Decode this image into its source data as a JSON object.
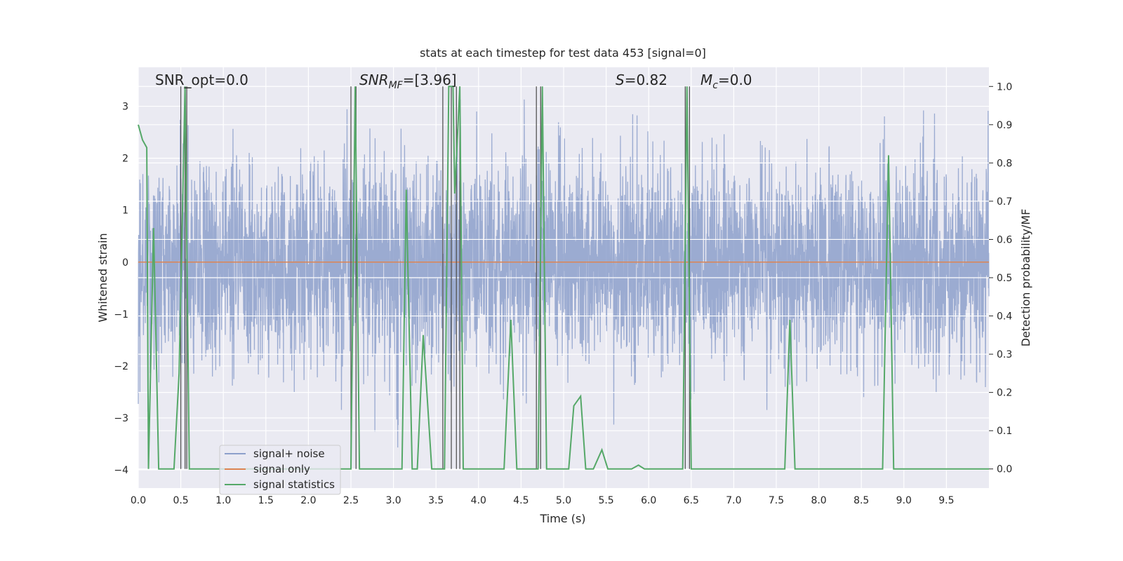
{
  "chart_data": {
    "type": "line",
    "title": "stats at each timestep for test data 453 [signal=0]",
    "xlabel": "Time (s)",
    "ylabel_left": "Whitened strain",
    "ylabel_right": "Detection probability/MF",
    "xlim": [
      0.0,
      10.0
    ],
    "ylim_left": [
      -4.35,
      3.75
    ],
    "ylim_right": [
      -0.05,
      1.05
    ],
    "xticks": [
      "0.0",
      "0.5",
      "1.0",
      "1.5",
      "2.0",
      "2.5",
      "3.0",
      "3.5",
      "4.0",
      "4.5",
      "5.0",
      "5.5",
      "6.0",
      "6.5",
      "7.0",
      "7.5",
      "8.0",
      "8.5",
      "9.0",
      "9.5"
    ],
    "yticks_left": [
      "3",
      "2",
      "1",
      "0",
      "−1",
      "−2",
      "−3",
      "−4"
    ],
    "yticks_right": [
      "1.0",
      "0.9",
      "0.8",
      "0.7",
      "0.6",
      "0.5",
      "0.4",
      "0.3",
      "0.2",
      "0.1",
      "0.0"
    ],
    "grid": true,
    "legend_position": "lower-left",
    "annotations": {
      "snr_opt": "SNR_opt=0.0",
      "snr_mf_sym": "SNR",
      "snr_mf_sub": "MF",
      "snr_mf_val": "=[3.96]",
      "s_sym": "S",
      "s_val": "=0.82",
      "mc_sym": "M",
      "mc_sub": "c",
      "mc_val": "=0.0"
    },
    "series": [
      {
        "name": "signal+ noise",
        "color": "#8da0cb",
        "axis": "left",
        "description_range": [
          -2.1,
          2.3
        ]
      },
      {
        "name": "signal only",
        "color": "#dd8452",
        "axis": "left",
        "x": [
          0.0,
          10.0
        ],
        "y": [
          0.0,
          0.0
        ]
      },
      {
        "name": "signal statistics",
        "color": "#55a868",
        "axis": "right",
        "x": [
          0.0,
          0.05,
          0.1,
          0.12,
          0.18,
          0.24,
          0.3,
          0.36,
          0.42,
          0.48,
          0.55,
          0.6,
          0.66,
          0.72,
          0.78,
          0.84,
          0.9,
          0.96,
          1.02,
          1.5,
          2.0,
          2.4,
          2.5,
          2.55,
          2.6,
          2.65,
          2.7,
          2.75,
          2.8,
          2.9,
          3.0,
          3.1,
          3.15,
          3.22,
          3.28,
          3.35,
          3.45,
          3.5,
          3.55,
          3.6,
          3.65,
          3.7,
          3.72,
          3.78,
          3.82,
          3.88,
          3.95,
          4.0,
          4.3,
          4.38,
          4.45,
          4.5,
          4.6,
          4.7,
          4.75,
          4.8,
          4.9,
          4.98,
          5.06,
          5.12,
          5.2,
          5.26,
          5.35,
          5.45,
          5.52,
          5.8,
          5.88,
          5.95,
          6.0,
          6.4,
          6.45,
          6.5,
          6.56,
          6.7,
          7.0,
          7.5,
          7.6,
          7.66,
          7.72,
          8.0,
          8.5,
          8.75,
          8.82,
          8.88,
          8.96,
          9.2,
          10.0
        ],
        "y": [
          0.9,
          0.86,
          0.84,
          0.0,
          0.63,
          0.0,
          0.0,
          0.0,
          0.0,
          0.25,
          1.0,
          0.0,
          0.0,
          0.0,
          0.0,
          0.0,
          0.0,
          0.0,
          0.0,
          0.0,
          0.0,
          0.0,
          0.0,
          1.0,
          0.0,
          0.0,
          0.0,
          0.0,
          0.0,
          0.0,
          0.0,
          0.0,
          0.73,
          0.0,
          0.0,
          0.35,
          0.0,
          0.0,
          0.0,
          0.0,
          1.0,
          1.0,
          0.72,
          1.0,
          0.0,
          0.0,
          0.0,
          0.0,
          0.0,
          0.39,
          0.0,
          0.0,
          0.0,
          0.0,
          1.0,
          0.0,
          0.0,
          0.0,
          0.0,
          0.165,
          0.19,
          0.0,
          0.0,
          0.05,
          0.0,
          0.0,
          0.01,
          0.0,
          0.0,
          0.0,
          1.0,
          0.0,
          0.0,
          0.0,
          0.0,
          0.0,
          0.0,
          0.39,
          0.0,
          0.0,
          0.0,
          0.0,
          0.82,
          0.0,
          0.0,
          0.0,
          0.0
        ]
      }
    ],
    "vertical_markers_x": [
      0.5,
      0.55,
      0.57,
      2.5,
      2.56,
      3.58,
      3.68,
      3.74,
      3.78,
      4.68,
      4.73,
      6.43,
      6.48
    ],
    "vertical_marker_top": 1.0,
    "vertical_marker_bottom": 0.0
  }
}
